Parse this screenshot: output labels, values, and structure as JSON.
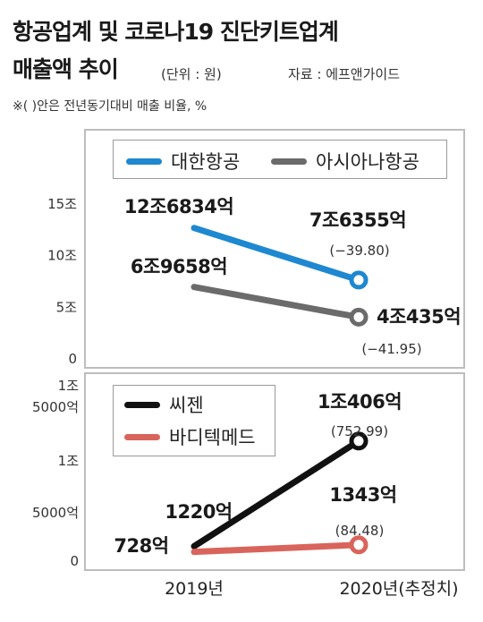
{
  "header": {
    "title_line1": "항공업계 및 코로나19 진단키트업계",
    "title_line2": "매출액 추이",
    "unit": "(단위 : 원)",
    "source": "자료 : 에프앤가이드",
    "note": "※(  )안은 전년동기대비 매출 비율, %"
  },
  "chart_data": [
    {
      "type": "line",
      "x": [
        "2019년",
        "2020년(추정치)"
      ],
      "yticks": [
        "15조",
        "10조",
        "5조",
        "0"
      ],
      "ylim": [
        0,
        15
      ],
      "y_unit": "조원",
      "series": [
        {
          "name": "대한항공",
          "color": "#1e88d0",
          "values": [
            12.6834,
            7.6355
          ],
          "labels": [
            "12조6834억",
            "7조6355억"
          ],
          "change": [
            "",
            "(−39.80)"
          ]
        },
        {
          "name": "아시아나항공",
          "color": "#6b6b6b",
          "values": [
            6.9658,
            4.0435
          ],
          "labels": [
            "6조9658억",
            "4조435억"
          ],
          "change": [
            "",
            "(−41.95)"
          ]
        }
      ]
    },
    {
      "type": "line",
      "x": [
        "2019년",
        "2020년(추정치)"
      ],
      "yticks": [
        "1조",
        "5000억",
        "1조",
        "5000억",
        "0"
      ],
      "ylim": [
        0,
        15000
      ],
      "y_unit": "억원",
      "series": [
        {
          "name": "씨젠",
          "color": "#111111",
          "values": [
            1220,
            10406
          ],
          "labels": [
            "1220억",
            "1조406억"
          ],
          "change": [
            "",
            "(752.99)"
          ]
        },
        {
          "name": "바디텍메드",
          "color": "#d9645b",
          "values": [
            728,
            1343
          ],
          "labels": [
            "728억",
            "1343억"
          ],
          "change": [
            "",
            "(84.48)"
          ]
        }
      ]
    }
  ]
}
